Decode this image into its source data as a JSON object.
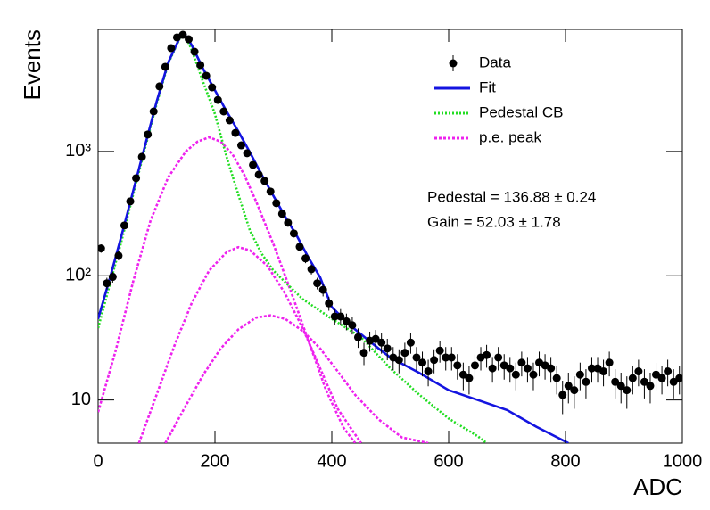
{
  "chart_data": {
    "type": "scatter",
    "xlabel": "ADC",
    "ylabel": "Events",
    "log_y": true,
    "xlim": [
      0,
      1000
    ],
    "ylim": [
      4.5,
      9600
    ],
    "xticks": [
      0,
      200,
      400,
      600,
      800,
      1000
    ],
    "yticks": [
      10,
      {
        "value": 100,
        "label": "10²"
      },
      {
        "value": 1000,
        "label": "10³"
      }
    ],
    "legend": "top-right",
    "annotations": [
      "Pedestal = 136.88 ± 0.24",
      "Gain = 52.03 ± 1.78"
    ],
    "series": [
      {
        "name": "Data",
        "type": "scatter",
        "color": "#000000",
        "x": [
          5,
          15,
          25,
          35,
          45,
          55,
          65,
          75,
          85,
          95,
          105,
          115,
          125,
          135,
          145,
          155,
          165,
          175,
          185,
          195,
          205,
          215,
          225,
          235,
          245,
          255,
          265,
          275,
          285,
          295,
          305,
          315,
          325,
          335,
          345,
          355,
          365,
          375,
          385,
          395,
          405,
          415,
          425,
          435,
          445,
          455,
          465,
          475,
          485,
          495,
          505,
          515,
          525,
          535,
          545,
          555,
          565,
          575,
          585,
          595,
          605,
          615,
          625,
          635,
          645,
          655,
          665,
          675,
          685,
          695,
          705,
          715,
          725,
          735,
          745,
          755,
          765,
          775,
          785,
          795,
          805,
          815,
          825,
          835,
          845,
          855,
          865,
          875,
          885,
          895,
          905,
          915,
          925,
          935,
          945,
          955,
          965,
          975,
          985,
          995
        ],
        "values": [
          166,
          87,
          98,
          145,
          254,
          397,
          610,
          906,
          1370,
          2100,
          3340,
          4800,
          6790,
          8280,
          8690,
          8000,
          6350,
          4960,
          4070,
          3280,
          2600,
          2100,
          1780,
          1410,
          1120,
          968,
          780,
          651,
          580,
          476,
          384,
          315,
          267,
          219,
          171,
          138,
          113,
          87,
          77,
          60,
          47,
          47,
          43,
          40,
          32,
          24,
          30,
          31,
          29,
          26,
          22,
          21,
          24,
          29,
          22,
          20,
          17,
          21,
          25,
          22,
          22,
          19,
          16,
          15,
          19,
          22,
          23,
          18,
          22,
          19,
          18,
          16,
          20,
          18,
          16,
          20,
          19,
          18,
          15,
          11,
          13,
          12,
          16,
          14,
          18,
          18,
          17,
          20,
          14,
          13,
          12,
          15,
          17,
          14,
          13,
          16,
          15,
          17,
          14,
          15
        ],
        "errors": [
          12.9,
          9.3,
          9.9,
          12,
          15.9,
          19.9,
          24.7,
          30.1,
          37,
          45.8,
          57.8,
          69.3,
          82.4,
          91,
          93.2,
          89.4,
          79.7,
          70.4,
          63.8,
          57.3,
          51,
          45.8,
          42.2,
          37.5,
          33.5,
          31.1,
          27.9,
          25.5,
          24.1,
          21.8,
          19.6,
          17.7,
          16.3,
          14.8,
          13.1,
          11.7,
          10.6,
          9.3,
          8.8,
          7.7,
          6.9,
          6.9,
          6.6,
          6.3,
          5.7,
          4.9,
          5.5,
          5.6,
          5.4,
          5.1,
          4.7,
          4.6,
          4.9,
          5.4,
          4.7,
          4.5,
          4.1,
          4.6,
          5,
          4.7,
          4.7,
          4.4,
          4,
          3.9,
          4.4,
          4.7,
          4.8,
          4.2,
          4.7,
          4.4,
          4.2,
          4,
          4.5,
          4.2,
          4,
          4.5,
          4.4,
          4.2,
          3.9,
          3.3,
          3.6,
          3.5,
          4,
          3.7,
          4.2,
          4.2,
          4.1,
          4.5,
          3.7,
          3.6,
          3.5,
          3.9,
          4.1,
          3.7,
          3.6,
          4,
          3.9,
          4.1,
          3.7,
          3.9
        ]
      },
      {
        "name": "Fit",
        "type": "line",
        "color": "#1414e0",
        "line_style": "solid",
        "x": [
          0,
          20,
          40,
          60,
          80,
          100,
          120,
          140,
          150,
          160,
          180,
          200,
          220,
          240,
          260,
          280,
          300,
          320,
          340,
          360,
          380,
          400,
          420,
          440,
          460,
          480,
          500,
          550,
          600,
          650,
          700,
          750,
          805
        ],
        "values": [
          45,
          95,
          210,
          480,
          1100,
          2500,
          5200,
          8300,
          8500,
          7200,
          4600,
          3100,
          2100,
          1450,
          980,
          650,
          440,
          300,
          210,
          140,
          97,
          56,
          45,
          37,
          31,
          26,
          22,
          16.5,
          12,
          10,
          8.3,
          6.1,
          4.5
        ]
      },
      {
        "name": "Pedestal CB",
        "type": "line",
        "color": "#22dd22",
        "line_style": "dotted",
        "x": [
          0,
          20,
          40,
          60,
          80,
          100,
          120,
          140,
          150,
          160,
          180,
          200,
          220,
          240,
          260,
          280,
          300,
          350,
          400,
          450,
          500,
          550,
          600,
          650,
          665
        ],
        "values": [
          38,
          85,
          190,
          450,
          1050,
          2400,
          5100,
          8200,
          8400,
          6600,
          3600,
          2000,
          900,
          450,
          230,
          150,
          110,
          65,
          45,
          32,
          18,
          11,
          7.1,
          5.1,
          4.5
        ]
      },
      {
        "name": "p.e. peak",
        "type": "line",
        "color": "#ee22ee",
        "line_style": "dashed",
        "components": [
          {
            "x": [
              0,
              30,
              60,
              90,
              120,
              150,
              170,
              190,
              210,
              230,
              250,
              270,
              300,
              330,
              360,
              390,
              420,
              440
            ],
            "values": [
              8,
              25,
              90,
              280,
              620,
              1000,
              1200,
              1300,
              1200,
              950,
              650,
              400,
              180,
              75,
              30,
              12,
              6,
              4.5
            ]
          },
          {
            "x": [
              70,
              100,
              130,
              160,
              190,
              220,
              240,
              260,
              290,
              320,
              350,
              380,
              410,
              450
            ],
            "values": [
              4.5,
              11,
              27,
              60,
              110,
              155,
              170,
              160,
              120,
              72,
              38,
              18,
              8.5,
              4.5
            ]
          },
          {
            "x": [
              115,
              150,
              180,
              210,
              240,
              270,
              295,
              320,
              350,
              380,
              410,
              440,
              480,
              520,
              565
            ],
            "values": [
              4.5,
              9,
              16,
              26,
              37,
              46,
              48,
              45,
              36,
              26,
              17,
              11,
              7,
              5,
              4.5
            ]
          }
        ]
      }
    ]
  }
}
